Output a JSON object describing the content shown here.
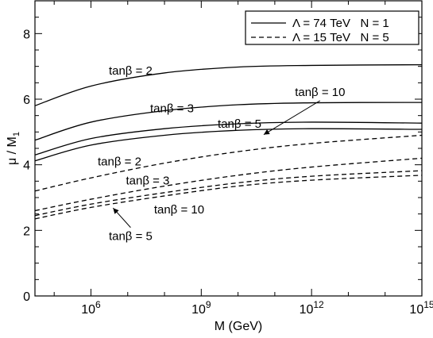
{
  "chart_data": {
    "type": "line",
    "title": "",
    "xlabel": "M (GeV)",
    "ylabel": "μ / M",
    "ylabel_sub": "1",
    "xscale": "log",
    "xlim": [
      30000.0,
      1000000000000000.0
    ],
    "ylim": [
      0,
      9
    ],
    "grid": false,
    "x_ticks": [
      {
        "base": "10",
        "exp": "6",
        "value": 1000000.0
      },
      {
        "base": "10",
        "exp": "9",
        "value": 1000000000.0
      },
      {
        "base": "10",
        "exp": "12",
        "value": 1000000000000.0
      },
      {
        "base": "10",
        "exp": "15",
        "value": 1000000000000000.0
      }
    ],
    "y_ticks": [
      0,
      2,
      4,
      6,
      8
    ],
    "legend": {
      "placement": "top-right",
      "entries": [
        {
          "style": "solid",
          "text": "Λ = 74 TeV   N = 1"
        },
        {
          "style": "dashed",
          "text": "Λ = 15 TeV   N = 5"
        }
      ]
    },
    "series": [
      {
        "style": "solid",
        "x": [
          30000.0,
          1000000.0,
          100000000.0,
          10000000000.0,
          1000000000000.0,
          1000000000000000.0
        ],
        "values": [
          5.8,
          6.4,
          6.8,
          6.98,
          7.03,
          7.05
        ]
      },
      {
        "style": "solid",
        "x": [
          30000.0,
          1000000.0,
          100000000.0,
          10000000000.0,
          1000000000000.0,
          1000000000000000.0
        ],
        "values": [
          4.75,
          5.3,
          5.65,
          5.83,
          5.89,
          5.9
        ]
      },
      {
        "style": "solid",
        "x": [
          30000.0,
          1000000.0,
          100000000.0,
          10000000000.0,
          1000000000000.0,
          1000000000000000.0
        ],
        "values": [
          4.3,
          4.8,
          5.1,
          5.25,
          5.3,
          5.27
        ]
      },
      {
        "style": "solid",
        "x": [
          30000.0,
          1000000.0,
          100000000.0,
          10000000000.0,
          1000000000000.0,
          1000000000000000.0
        ],
        "values": [
          4.12,
          4.6,
          4.9,
          5.05,
          5.1,
          5.08
        ]
      },
      {
        "style": "dashed",
        "x": [
          30000.0,
          1000000.0,
          100000000.0,
          10000000000.0,
          1000000000000.0,
          1000000000000000.0
        ],
        "values": [
          3.2,
          3.6,
          4.05,
          4.4,
          4.65,
          4.9
        ]
      },
      {
        "style": "dashed",
        "x": [
          30000.0,
          1000000.0,
          100000000.0,
          10000000000.0,
          1000000000000.0,
          1000000000000000.0
        ],
        "values": [
          2.6,
          2.95,
          3.35,
          3.68,
          3.93,
          4.2
        ]
      },
      {
        "style": "dashed",
        "x": [
          30000.0,
          1000000.0,
          100000000.0,
          10000000000.0,
          1000000000000.0,
          1000000000000000.0
        ],
        "values": [
          2.45,
          2.8,
          3.15,
          3.45,
          3.65,
          3.82
        ]
      },
      {
        "style": "dashed",
        "x": [
          30000.0,
          1000000.0,
          100000000.0,
          10000000000.0,
          1000000000000.0,
          1000000000000000.0
        ],
        "values": [
          2.35,
          2.7,
          3.05,
          3.35,
          3.53,
          3.68
        ]
      }
    ],
    "annotations": [
      {
        "text": "tanβ = 2",
        "x": 12000000.0,
        "y": 6.75,
        "anchor": "middle"
      },
      {
        "text": "tanβ = 3",
        "x": 160000000.0,
        "y": 5.6,
        "anchor": "middle"
      },
      {
        "text": "tanβ = 5",
        "x": 11000000000.0,
        "y": 5.13,
        "anchor": "middle"
      },
      {
        "text": "tanβ = 10",
        "x": 1700000000000.0,
        "y": 6.1,
        "anchor": "middle",
        "arrow_to": {
          "x": 50000000000.0,
          "y": 4.92
        }
      },
      {
        "text": "tanβ = 2",
        "x": 6000000.0,
        "y": 3.98,
        "anchor": "middle"
      },
      {
        "text": "tanβ = 3",
        "x": 35000000.0,
        "y": 3.4,
        "anchor": "middle"
      },
      {
        "text": "tanβ = 10",
        "x": 250000000.0,
        "y": 2.52,
        "anchor": "middle"
      },
      {
        "text": "tanβ = 5",
        "x": 12000000.0,
        "y": 1.7,
        "anchor": "middle",
        "arrow_to": {
          "x": 4000000.0,
          "y": 2.68
        }
      }
    ]
  }
}
